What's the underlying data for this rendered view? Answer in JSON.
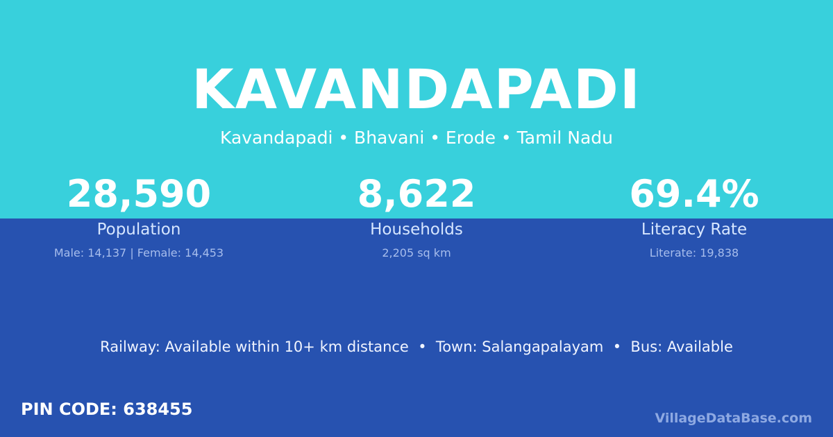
{
  "header": {
    "title": "KAVANDAPADI",
    "subtitle": "Kavandapadi • Bhavani • Erode • Tamil Nadu"
  },
  "stats": [
    {
      "value": "28,590",
      "label": "Population",
      "detail": "Male: 14,137 | Female: 14,453"
    },
    {
      "value": "8,622",
      "label": "Households",
      "detail": "2,205 sq km"
    },
    {
      "value": "69.4%",
      "label": "Literacy Rate",
      "detail": "Literate: 19,838"
    }
  ],
  "info": "Railway: Available within 10+ km distance  •  Town: Salangapalayam  •  Bus: Available",
  "footer": {
    "pin": "PIN CODE: 638455",
    "brand": "VillageDataBase.com"
  }
}
